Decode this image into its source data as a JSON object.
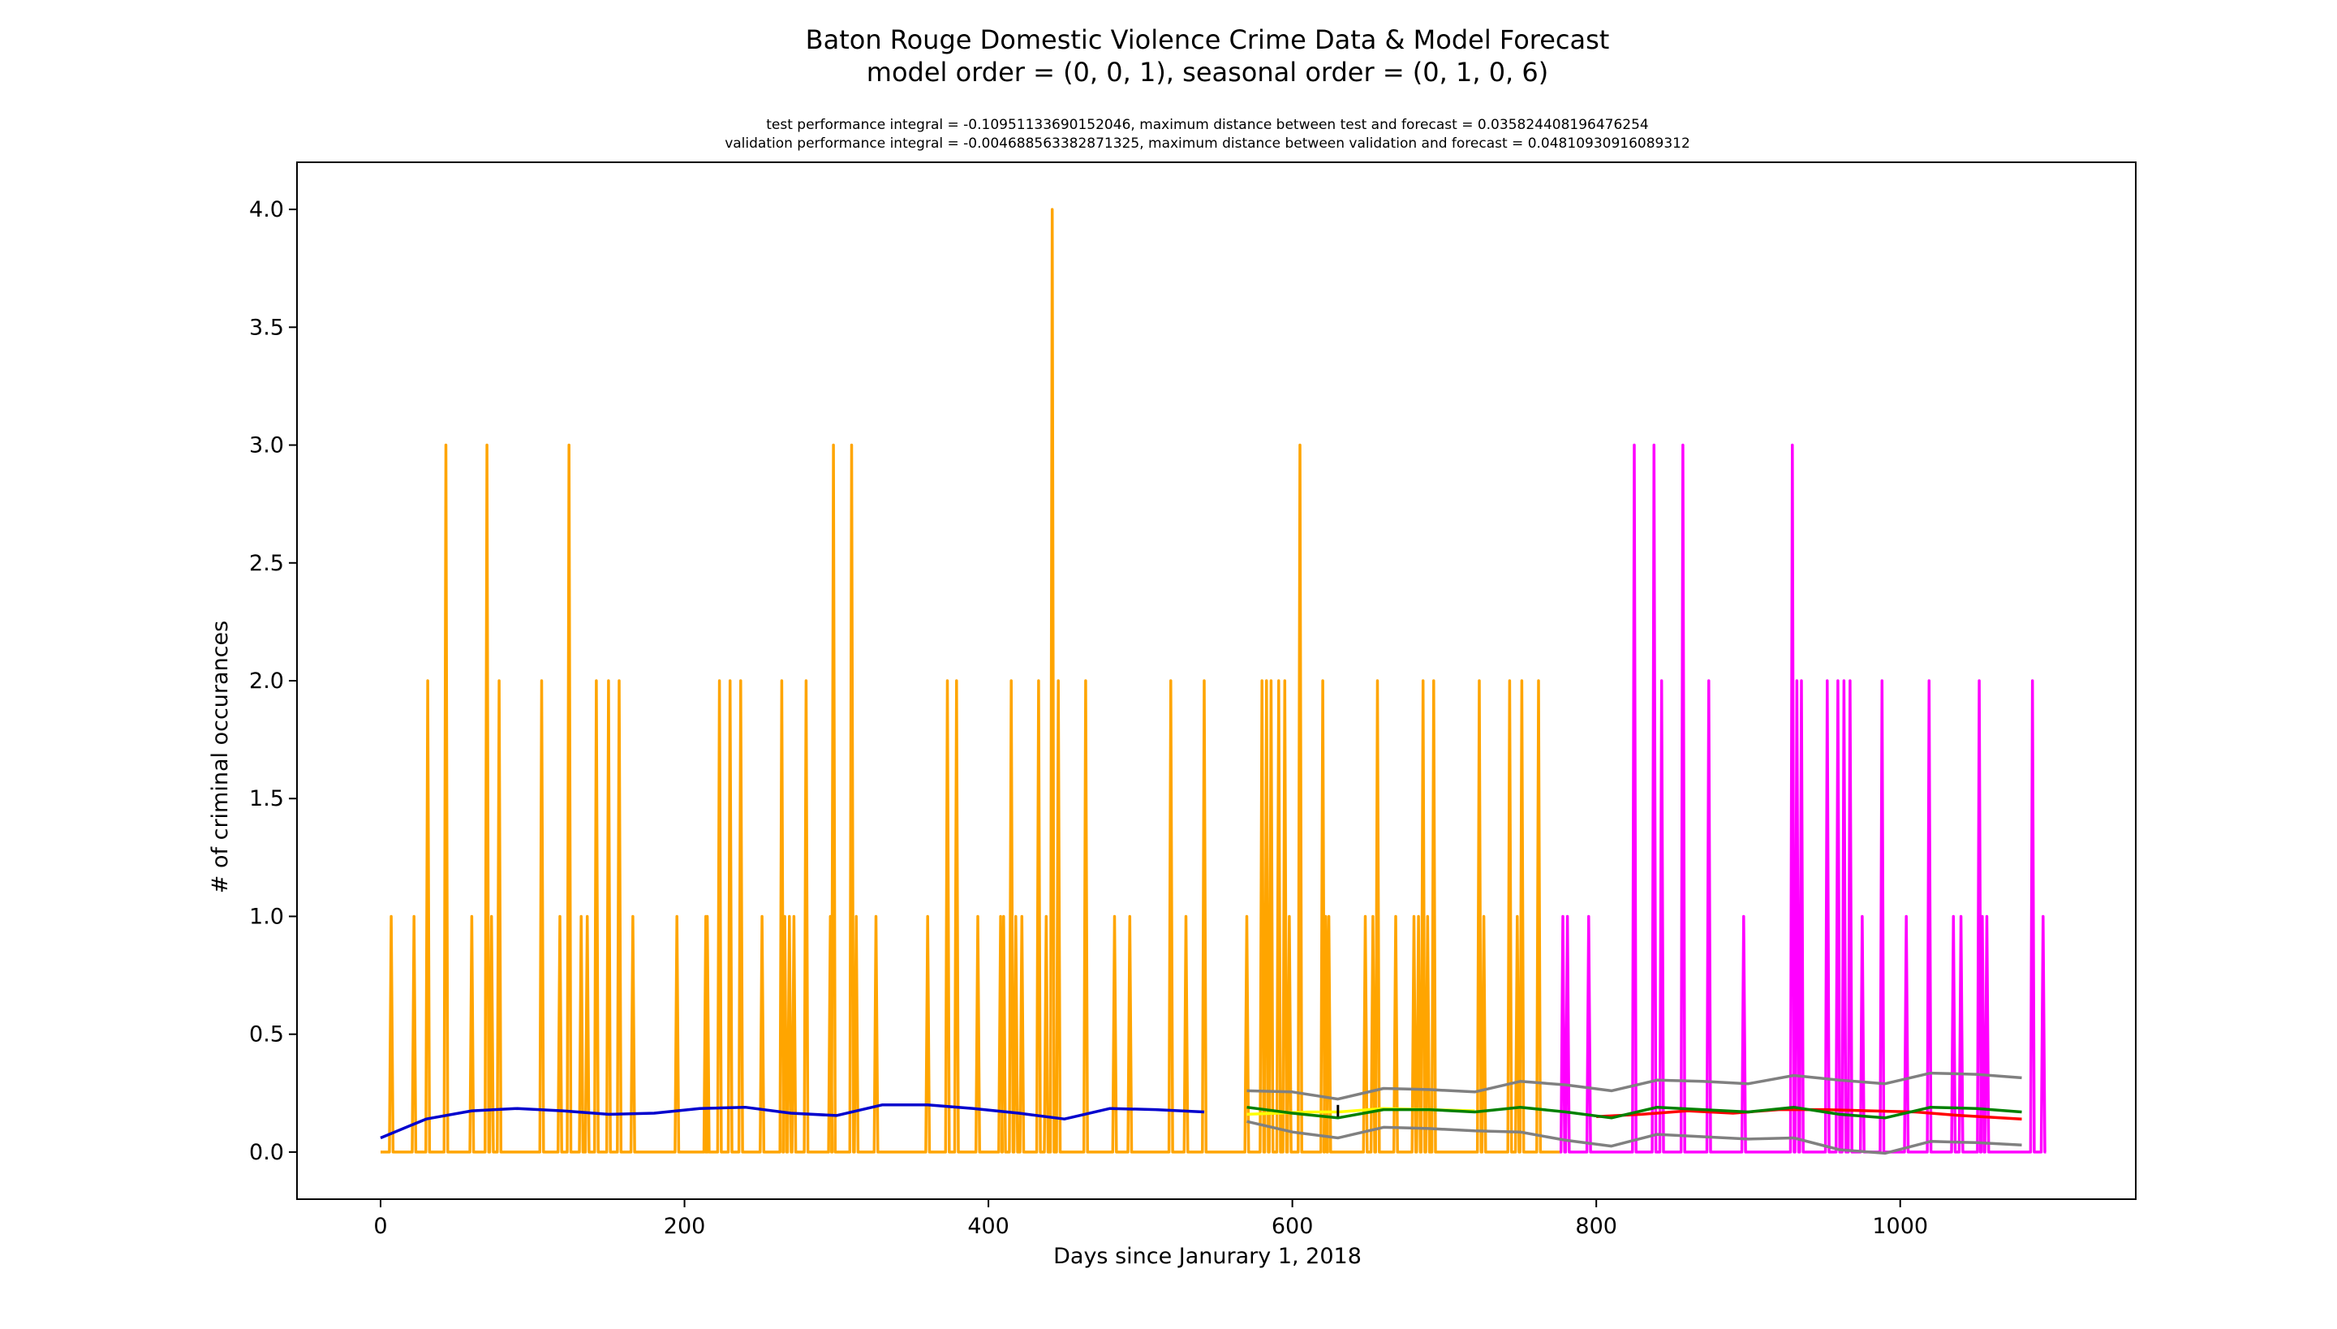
{
  "chart_data": {
    "type": "line",
    "title": "Baton Rouge Domestic Violence Crime Data & Model Forecast",
    "title_line2": "model order = (0, 0, 1), seasonal order = (0, 1, 0, 6)",
    "subtitle_line1": "test performance integral = -0.10951133690152046, maximum distance between test and forecast = 0.035824408196476254",
    "subtitle_line2": "validation performance integral = -0.004688563382871325, maximum distance between validation and forecast = 0.04810930916089312",
    "xlabel": "Days since Janurary 1, 2018",
    "ylabel": "# of criminal occurances",
    "xlim": [
      -55,
      1155
    ],
    "ylim": [
      -0.2,
      4.2
    ],
    "x_ticks": [
      0,
      200,
      400,
      600,
      800,
      1000
    ],
    "x_tick_labels": [
      "0",
      "200",
      "400",
      "600",
      "800",
      "1000"
    ],
    "y_ticks": [
      0.0,
      0.5,
      1.0,
      1.5,
      2.0,
      2.5,
      3.0,
      3.5,
      4.0
    ],
    "y_tick_labels": [
      "0.0",
      "0.5",
      "1.0",
      "1.5",
      "2.0",
      "2.5",
      "3.0",
      "3.5",
      "4.0"
    ],
    "grid": false,
    "legend": "none",
    "series": [
      {
        "role": "observed-train",
        "color": "#ffa500",
        "x_range": [
          0,
          776
        ],
        "spikes": [
          [
            7,
            1
          ],
          [
            22,
            1
          ],
          [
            31,
            2
          ],
          [
            43,
            3
          ],
          [
            60,
            1
          ],
          [
            70,
            3
          ],
          [
            73,
            1
          ],
          [
            78,
            2
          ],
          [
            106,
            2
          ],
          [
            118,
            1
          ],
          [
            124,
            3
          ],
          [
            132,
            1
          ],
          [
            136,
            1
          ],
          [
            142,
            2
          ],
          [
            150,
            2
          ],
          [
            157,
            2
          ],
          [
            166,
            1
          ],
          [
            195,
            1
          ],
          [
            214,
            1
          ],
          [
            215,
            1
          ],
          [
            223,
            2
          ],
          [
            230,
            2
          ],
          [
            237,
            2
          ],
          [
            251,
            1
          ],
          [
            264,
            2
          ],
          [
            266,
            1
          ],
          [
            269,
            1
          ],
          [
            272,
            1
          ],
          [
            280,
            2
          ],
          [
            296,
            1
          ],
          [
            298,
            3
          ],
          [
            310,
            3
          ],
          [
            313,
            1
          ],
          [
            326,
            1
          ],
          [
            360,
            1
          ],
          [
            373,
            2
          ],
          [
            379,
            2
          ],
          [
            393,
            1
          ],
          [
            408,
            1
          ],
          [
            410,
            1
          ],
          [
            415,
            2
          ],
          [
            418,
            1
          ],
          [
            422,
            1
          ],
          [
            433,
            2
          ],
          [
            438,
            1
          ],
          [
            442,
            4
          ],
          [
            446,
            2
          ],
          [
            464,
            2
          ],
          [
            483,
            1
          ],
          [
            493,
            1
          ],
          [
            520,
            2
          ],
          [
            530,
            1
          ],
          [
            542,
            2
          ],
          [
            570,
            1
          ],
          [
            580,
            2
          ],
          [
            583,
            2
          ],
          [
            586,
            2
          ],
          [
            591,
            2
          ],
          [
            595,
            2
          ],
          [
            598,
            1
          ],
          [
            605,
            3
          ],
          [
            620,
            2
          ],
          [
            622,
            1
          ],
          [
            624,
            1
          ],
          [
            648,
            1
          ],
          [
            653,
            1
          ],
          [
            656,
            2
          ],
          [
            668,
            1
          ],
          [
            680,
            1
          ],
          [
            683,
            1
          ],
          [
            686,
            2
          ],
          [
            689,
            1
          ],
          [
            693,
            2
          ],
          [
            723,
            2
          ],
          [
            726,
            1
          ],
          [
            743,
            2
          ],
          [
            748,
            1
          ],
          [
            751,
            2
          ],
          [
            762,
            2
          ]
        ]
      },
      {
        "role": "observed-test",
        "color": "#ff00ff",
        "x_range": [
          776,
          1096
        ],
        "spikes": [
          [
            778,
            1
          ],
          [
            781,
            1
          ],
          [
            795,
            1
          ],
          [
            825,
            3
          ],
          [
            838,
            3
          ],
          [
            843,
            2
          ],
          [
            857,
            3
          ],
          [
            874,
            2
          ],
          [
            897,
            1
          ],
          [
            929,
            3
          ],
          [
            932,
            2
          ],
          [
            935,
            2
          ],
          [
            952,
            2
          ],
          [
            959,
            2
          ],
          [
            963,
            2
          ],
          [
            967,
            2
          ],
          [
            975,
            1
          ],
          [
            988,
            2
          ],
          [
            1004,
            1
          ],
          [
            1019,
            2
          ],
          [
            1035,
            1
          ],
          [
            1040,
            1
          ],
          [
            1052,
            2
          ],
          [
            1054,
            1
          ],
          [
            1057,
            1
          ],
          [
            1087,
            2
          ],
          [
            1094,
            1
          ]
        ]
      },
      {
        "role": "fitted",
        "color": "#0000cd",
        "points": [
          [
            0,
            0.06
          ],
          [
            30,
            0.14
          ],
          [
            60,
            0.175
          ],
          [
            90,
            0.185
          ],
          [
            120,
            0.175
          ],
          [
            150,
            0.16
          ],
          [
            180,
            0.165
          ],
          [
            210,
            0.185
          ],
          [
            240,
            0.19
          ],
          [
            270,
            0.165
          ],
          [
            300,
            0.155
          ],
          [
            330,
            0.2
          ],
          [
            360,
            0.2
          ],
          [
            390,
            0.185
          ],
          [
            420,
            0.165
          ],
          [
            450,
            0.14
          ],
          [
            480,
            0.185
          ],
          [
            510,
            0.18
          ],
          [
            542,
            0.17
          ]
        ]
      },
      {
        "role": "forecast-upper",
        "color": "#808080",
        "points": [
          [
            570,
            0.26
          ],
          [
            600,
            0.255
          ],
          [
            630,
            0.225
          ],
          [
            660,
            0.27
          ],
          [
            690,
            0.265
          ],
          [
            720,
            0.255
          ],
          [
            750,
            0.3
          ],
          [
            780,
            0.285
          ],
          [
            810,
            0.26
          ],
          [
            840,
            0.305
          ],
          [
            870,
            0.3
          ],
          [
            900,
            0.29
          ],
          [
            930,
            0.325
          ],
          [
            960,
            0.305
          ],
          [
            990,
            0.29
          ],
          [
            1020,
            0.335
          ],
          [
            1050,
            0.33
          ],
          [
            1080,
            0.315
          ]
        ]
      },
      {
        "role": "forecast-lower",
        "color": "#808080",
        "points": [
          [
            570,
            0.13
          ],
          [
            600,
            0.085
          ],
          [
            630,
            0.06
          ],
          [
            660,
            0.105
          ],
          [
            690,
            0.1
          ],
          [
            720,
            0.09
          ],
          [
            750,
            0.085
          ],
          [
            780,
            0.05
          ],
          [
            810,
            0.025
          ],
          [
            840,
            0.075
          ],
          [
            870,
            0.065
          ],
          [
            900,
            0.055
          ],
          [
            930,
            0.06
          ],
          [
            960,
            0.01
          ],
          [
            990,
            -0.005
          ],
          [
            1020,
            0.045
          ],
          [
            1050,
            0.04
          ],
          [
            1080,
            0.03
          ]
        ]
      },
      {
        "role": "validation-average",
        "color": "#ffff00",
        "points": [
          [
            570,
            0.16
          ],
          [
            590,
            0.165
          ],
          [
            610,
            0.17
          ],
          [
            630,
            0.17
          ],
          [
            660,
            0.185
          ],
          [
            690,
            0.18
          ],
          [
            720,
            0.175
          ]
        ]
      },
      {
        "role": "test-average",
        "color": "#ff0000",
        "points": [
          [
            800,
            0.15
          ],
          [
            830,
            0.16
          ],
          [
            860,
            0.175
          ],
          [
            890,
            0.165
          ],
          [
            920,
            0.18
          ],
          [
            950,
            0.18
          ],
          [
            980,
            0.175
          ],
          [
            1010,
            0.17
          ],
          [
            1040,
            0.155
          ],
          [
            1080,
            0.14
          ]
        ]
      },
      {
        "role": "forecast",
        "color": "#008000",
        "points": [
          [
            570,
            0.19
          ],
          [
            600,
            0.165
          ],
          [
            630,
            0.145
          ],
          [
            660,
            0.18
          ],
          [
            690,
            0.18
          ],
          [
            720,
            0.17
          ],
          [
            750,
            0.19
          ],
          [
            780,
            0.17
          ],
          [
            810,
            0.145
          ],
          [
            840,
            0.19
          ],
          [
            870,
            0.18
          ],
          [
            900,
            0.17
          ],
          [
            930,
            0.19
          ],
          [
            960,
            0.16
          ],
          [
            990,
            0.145
          ],
          [
            1020,
            0.19
          ],
          [
            1050,
            0.185
          ],
          [
            1080,
            0.17
          ]
        ]
      },
      {
        "role": "marker",
        "color": "#000000",
        "points": [
          [
            630,
            0.15
          ],
          [
            630,
            0.2
          ]
        ]
      }
    ]
  }
}
